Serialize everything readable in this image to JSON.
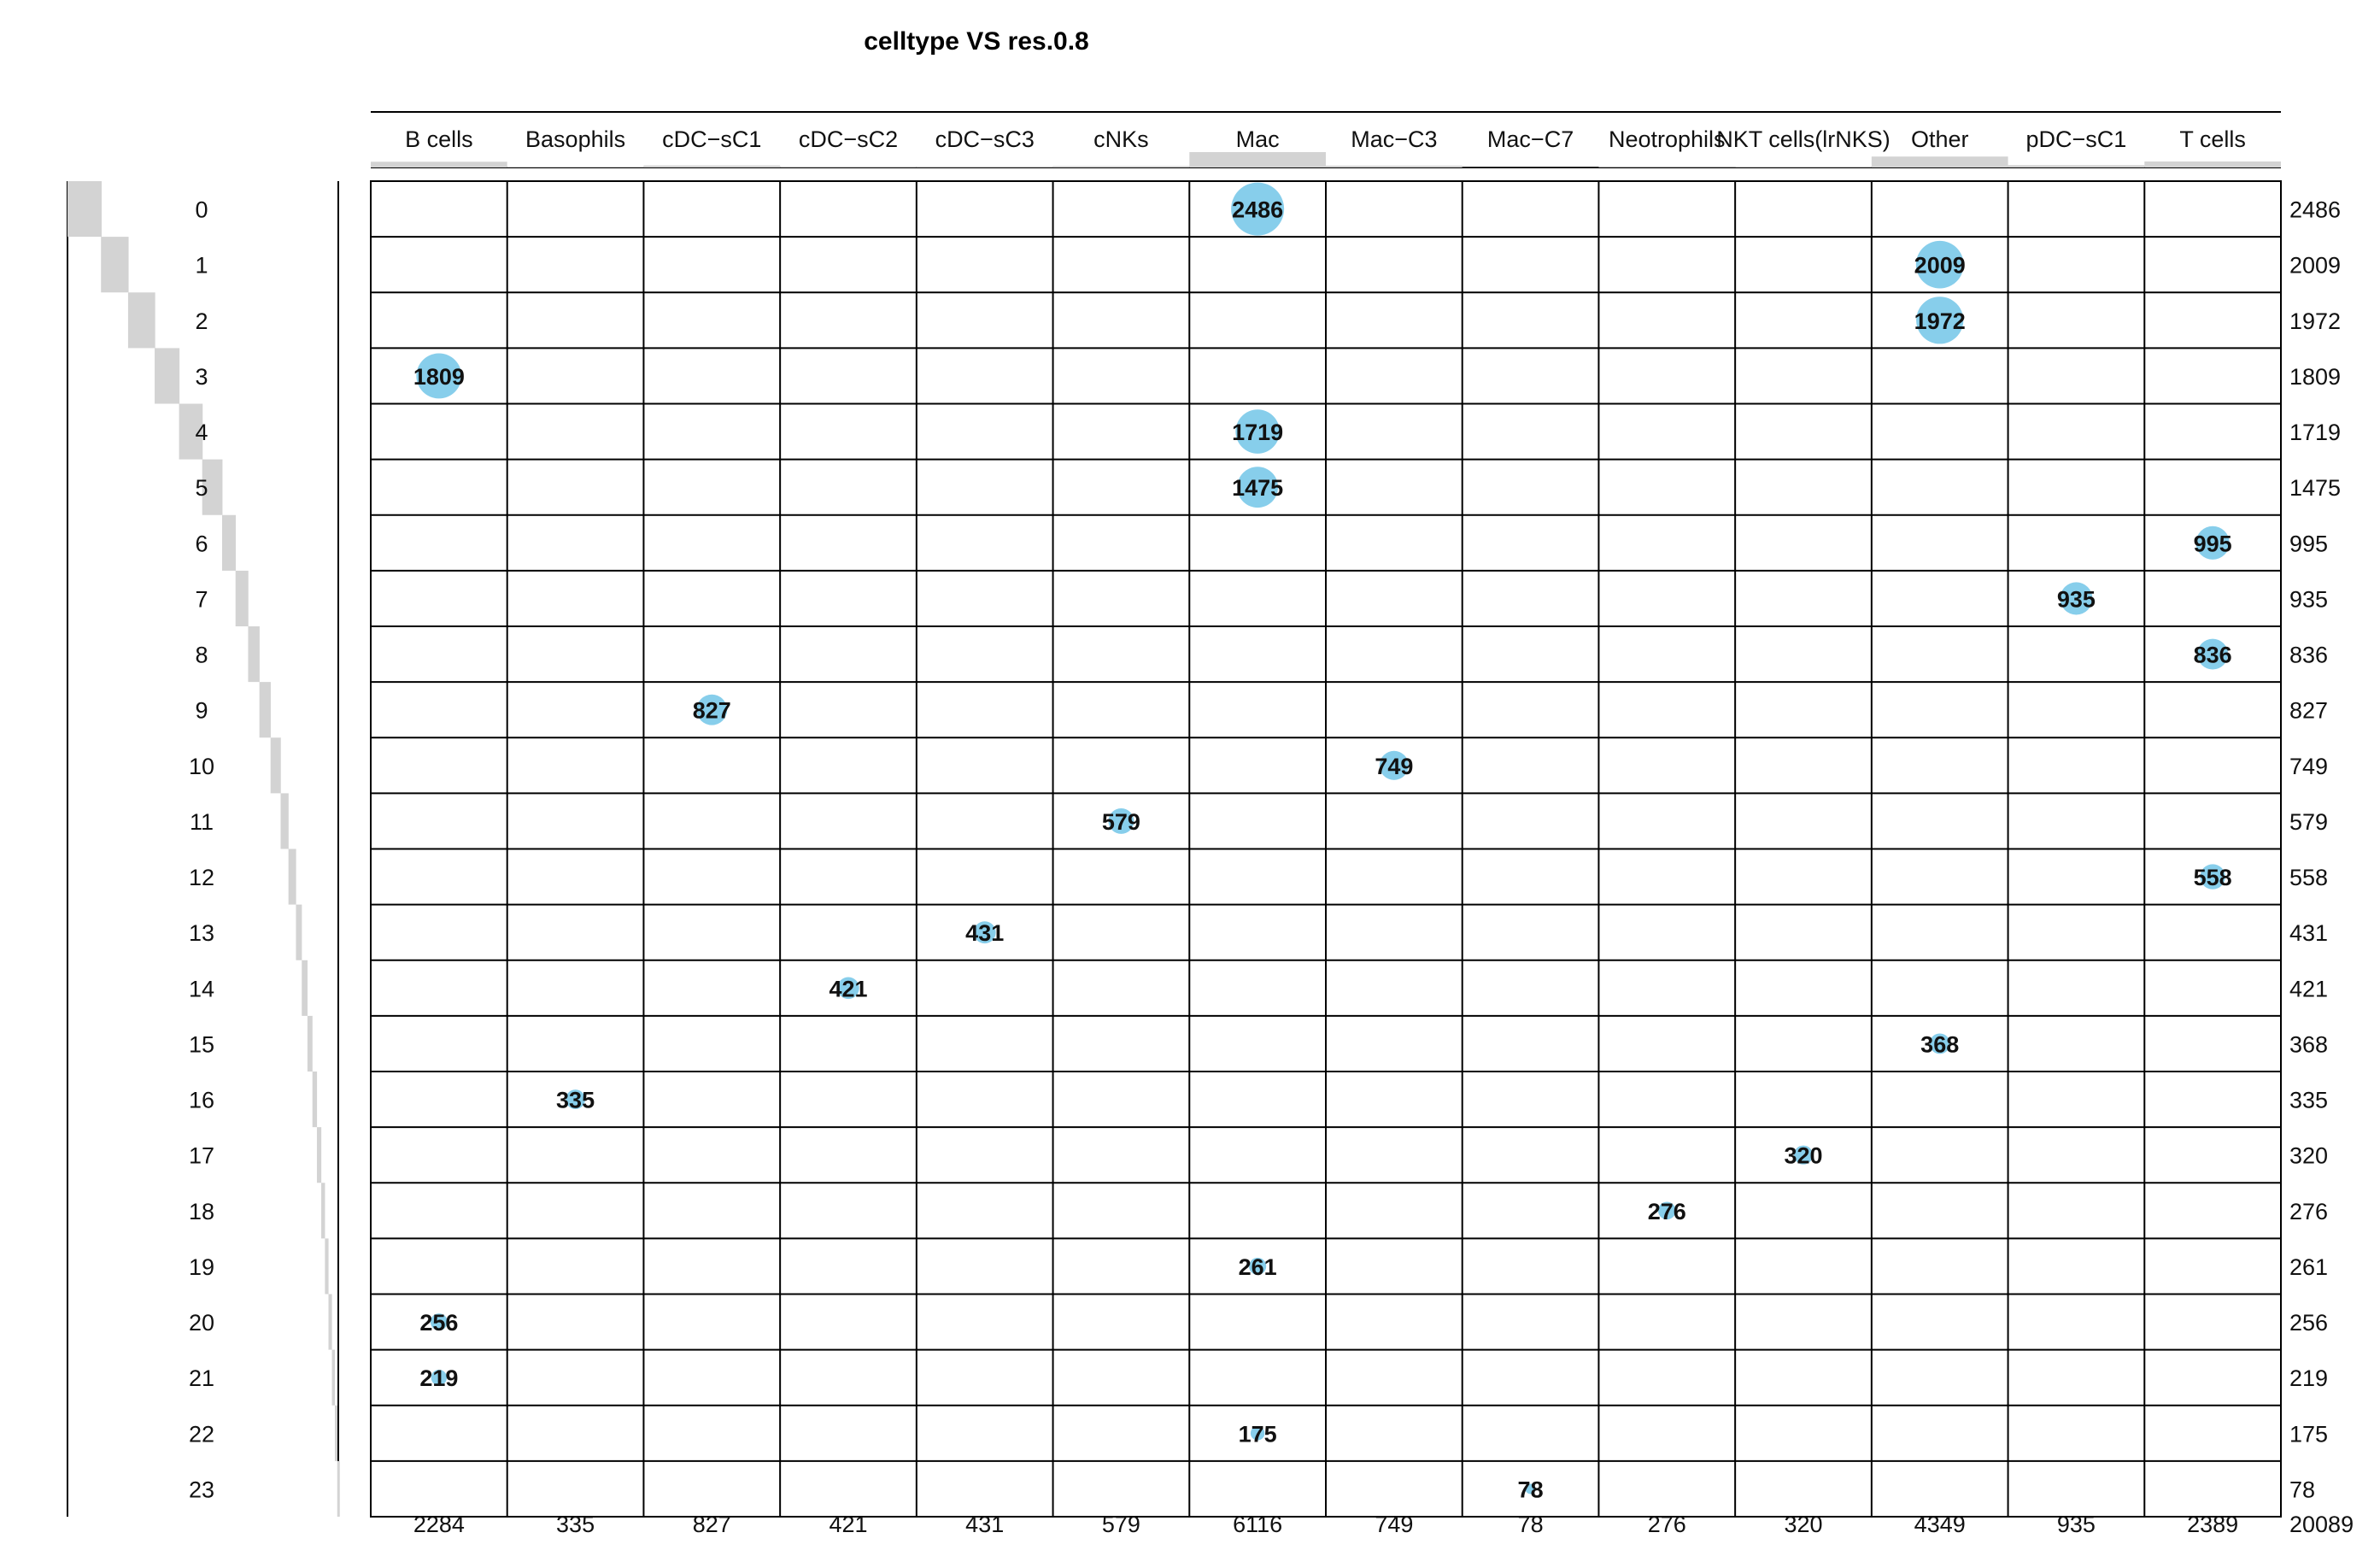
{
  "chart_data": {
    "type": "table",
    "title": "celltype VS  res.0.8",
    "columns": [
      "B cells",
      "Basophils",
      "cDC−sC1",
      "cDC−sC2",
      "cDC−sC3",
      "cNKs",
      "Mac",
      "Mac−C3",
      "Mac−C7",
      "Neotrophils",
      "NKT cells(lrNKS)",
      "Other",
      "pDC−sC1",
      "T cells"
    ],
    "rows": [
      "0",
      "1",
      "2",
      "3",
      "4",
      "5",
      "6",
      "7",
      "8",
      "9",
      "10",
      "11",
      "12",
      "13",
      "14",
      "15",
      "16",
      "17",
      "18",
      "19",
      "20",
      "21",
      "22",
      "23"
    ],
    "cells": [
      {
        "row": "0",
        "col": "Mac",
        "value": 2486
      },
      {
        "row": "1",
        "col": "Other",
        "value": 2009
      },
      {
        "row": "2",
        "col": "Other",
        "value": 1972
      },
      {
        "row": "3",
        "col": "B cells",
        "value": 1809
      },
      {
        "row": "4",
        "col": "Mac",
        "value": 1719
      },
      {
        "row": "5",
        "col": "Mac",
        "value": 1475
      },
      {
        "row": "6",
        "col": "T cells",
        "value": 995
      },
      {
        "row": "7",
        "col": "pDC−sC1",
        "value": 935
      },
      {
        "row": "8",
        "col": "T cells",
        "value": 836
      },
      {
        "row": "9",
        "col": "cDC−sC1",
        "value": 827
      },
      {
        "row": "10",
        "col": "Mac−C3",
        "value": 749
      },
      {
        "row": "11",
        "col": "cNKs",
        "value": 579
      },
      {
        "row": "12",
        "col": "T cells",
        "value": 558
      },
      {
        "row": "13",
        "col": "cDC−sC3",
        "value": 431
      },
      {
        "row": "14",
        "col": "cDC−sC2",
        "value": 421
      },
      {
        "row": "15",
        "col": "Other",
        "value": 368
      },
      {
        "row": "16",
        "col": "Basophils",
        "value": 335
      },
      {
        "row": "17",
        "col": "NKT cells(lrNKS)",
        "value": 320
      },
      {
        "row": "18",
        "col": "Neotrophils",
        "value": 276
      },
      {
        "row": "19",
        "col": "Mac",
        "value": 261
      },
      {
        "row": "20",
        "col": "B cells",
        "value": 256
      },
      {
        "row": "21",
        "col": "B cells",
        "value": 219
      },
      {
        "row": "22",
        "col": "Mac",
        "value": 175
      },
      {
        "row": "23",
        "col": "Mac−C7",
        "value": 78
      }
    ],
    "row_totals": [
      2486,
      2009,
      1972,
      1809,
      1719,
      1475,
      995,
      935,
      836,
      827,
      749,
      579,
      558,
      431,
      421,
      368,
      335,
      320,
      276,
      261,
      256,
      219,
      175,
      78
    ],
    "col_totals": [
      2284,
      335,
      827,
      421,
      431,
      579,
      6116,
      749,
      78,
      276,
      320,
      4349,
      935,
      2389
    ],
    "grand_total": 20089,
    "colors": {
      "bubble": "#87ceeb",
      "marginal_bar": "#d3d3d3",
      "grid": "#000000"
    }
  }
}
